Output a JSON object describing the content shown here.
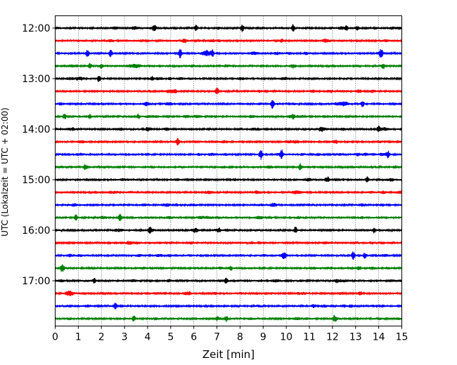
{
  "chart_data": {
    "type": "line",
    "title": "",
    "xlabel": "Zeit  [min]",
    "ylabel": "UTC (Lokalzeit = UTC + 02:00)",
    "xlim": [
      0,
      15
    ],
    "x_ticks": [
      0,
      1,
      2,
      3,
      4,
      5,
      6,
      7,
      8,
      9,
      10,
      11,
      12,
      13,
      14,
      15
    ],
    "y_tick_labels": [
      "12:00",
      "13:00",
      "14:00",
      "15:00",
      "16:00",
      "17:00"
    ],
    "trace_interval_minutes": 15,
    "trace_count": 24,
    "start_time": "12:00",
    "trace_colors": [
      "#000000",
      "#ff0000",
      "#0000ff",
      "#008000"
    ],
    "grid": "vertical dotted",
    "legend": "none",
    "events": [
      {
        "trace": 0,
        "minute": 4.3,
        "amp": 0.6
      },
      {
        "trace": 0,
        "minute": 6.1,
        "amp": 0.5
      },
      {
        "trace": 0,
        "minute": 8.1,
        "amp": 0.7
      },
      {
        "trace": 0,
        "minute": 10.3,
        "amp": 0.7
      },
      {
        "trace": 0,
        "minute": 12.6,
        "amp": 0.5
      },
      {
        "trace": 1,
        "minute": 5.6,
        "amp": 0.4
      },
      {
        "trace": 1,
        "minute": 9.8,
        "amp": 0.3
      },
      {
        "trace": 2,
        "minute": 1.4,
        "amp": 0.6
      },
      {
        "trace": 2,
        "minute": 2.4,
        "amp": 0.6
      },
      {
        "trace": 2,
        "minute": 5.4,
        "amp": 0.7
      },
      {
        "trace": 2,
        "minute": 6.8,
        "amp": 0.6
      },
      {
        "trace": 2,
        "minute": 14.1,
        "amp": 0.9
      },
      {
        "trace": 3,
        "minute": 1.5,
        "amp": 0.5
      },
      {
        "trace": 3,
        "minute": 2.0,
        "amp": 0.4
      },
      {
        "trace": 3,
        "minute": 14.2,
        "amp": 0.5
      },
      {
        "trace": 4,
        "minute": 1.9,
        "amp": 0.6
      },
      {
        "trace": 4,
        "minute": 4.2,
        "amp": 0.4
      },
      {
        "trace": 5,
        "minute": 7.0,
        "amp": 0.7
      },
      {
        "trace": 5,
        "minute": 5.2,
        "amp": 0.3
      },
      {
        "trace": 6,
        "minute": 9.4,
        "amp": 0.9
      },
      {
        "trace": 6,
        "minute": 13.3,
        "amp": 0.5
      },
      {
        "trace": 7,
        "minute": 0.4,
        "amp": 0.5
      },
      {
        "trace": 7,
        "minute": 1.5,
        "amp": 0.4
      },
      {
        "trace": 7,
        "minute": 3.6,
        "amp": 0.4
      },
      {
        "trace": 7,
        "minute": 10.3,
        "amp": 0.5
      },
      {
        "trace": 8,
        "minute": 4.0,
        "amp": 0.4
      },
      {
        "trace": 8,
        "minute": 11.5,
        "amp": 0.5
      },
      {
        "trace": 8,
        "minute": 14.0,
        "amp": 0.6
      },
      {
        "trace": 9,
        "minute": 5.3,
        "amp": 0.6
      },
      {
        "trace": 10,
        "minute": 8.9,
        "amp": 0.9
      },
      {
        "trace": 10,
        "minute": 9.8,
        "amp": 0.8
      },
      {
        "trace": 10,
        "minute": 14.4,
        "amp": 0.6
      },
      {
        "trace": 11,
        "minute": 1.3,
        "amp": 0.5
      },
      {
        "trace": 11,
        "minute": 10.6,
        "amp": 0.6
      },
      {
        "trace": 12,
        "minute": 11.8,
        "amp": 0.5
      },
      {
        "trace": 12,
        "minute": 13.5,
        "amp": 0.5
      },
      {
        "trace": 13,
        "minute": 8.7,
        "amp": 0.3
      },
      {
        "trace": 15,
        "minute": 0.9,
        "amp": 0.5
      },
      {
        "trace": 15,
        "minute": 2.8,
        "amp": 0.7
      },
      {
        "trace": 16,
        "minute": 4.1,
        "amp": 0.5
      },
      {
        "trace": 16,
        "minute": 7.1,
        "amp": 0.4
      },
      {
        "trace": 16,
        "minute": 10.4,
        "amp": 0.6
      },
      {
        "trace": 16,
        "minute": 13.8,
        "amp": 0.5
      },
      {
        "trace": 18,
        "minute": 9.9,
        "amp": 0.5
      },
      {
        "trace": 18,
        "minute": 12.9,
        "amp": 0.7
      },
      {
        "trace": 18,
        "minute": 13.4,
        "amp": 0.5
      },
      {
        "trace": 19,
        "minute": 0.3,
        "amp": 0.7
      },
      {
        "trace": 19,
        "minute": 7.6,
        "amp": 0.4
      },
      {
        "trace": 20,
        "minute": 1.7,
        "amp": 0.4
      },
      {
        "trace": 20,
        "minute": 7.4,
        "amp": 0.5
      },
      {
        "trace": 21,
        "minute": 13.2,
        "amp": 0.4
      },
      {
        "trace": 22,
        "minute": 2.6,
        "amp": 0.4
      },
      {
        "trace": 22,
        "minute": 12.8,
        "amp": 0.3
      },
      {
        "trace": 23,
        "minute": 3.4,
        "amp": 0.5
      },
      {
        "trace": 23,
        "minute": 7.4,
        "amp": 0.5
      },
      {
        "trace": 23,
        "minute": 12.1,
        "amp": 0.5
      }
    ]
  }
}
